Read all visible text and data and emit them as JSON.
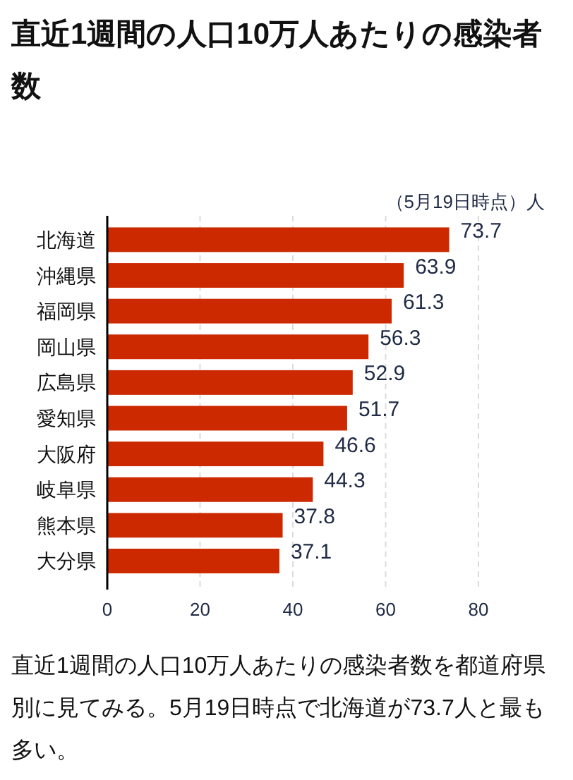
{
  "chart_data": {
    "type": "bar",
    "orientation": "horizontal",
    "title": "直近1週間の人口10万人あたりの感染者数",
    "xlabel": "（5月19日時点）人",
    "categories": [
      "北海道",
      "沖縄県",
      "福岡県",
      "岡山県",
      "広島県",
      "愛知県",
      "大阪府",
      "岐阜県",
      "熊本県",
      "大分県"
    ],
    "values": [
      73.7,
      63.9,
      61.3,
      56.3,
      52.9,
      51.7,
      46.6,
      44.3,
      37.8,
      37.1
    ],
    "color": "#cc2900",
    "xlim": [
      0,
      80
    ],
    "xticks": [
      0,
      20,
      40,
      60,
      80
    ],
    "grid": "x",
    "data_labels": true,
    "annotations": [
      "直近1週間の人口10万人あたりの感染者数を都道府県別に見てみる。5月19日時点で北海道が73.7人と最も多い。"
    ]
  }
}
